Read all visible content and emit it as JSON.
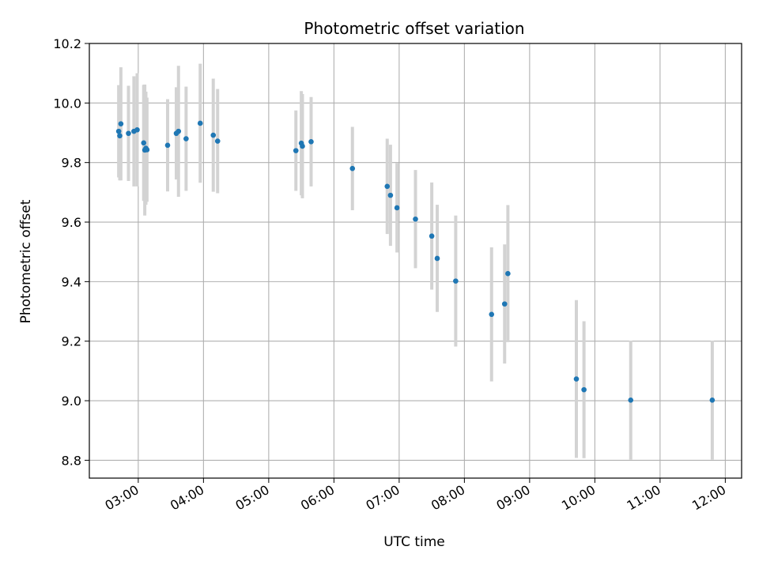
{
  "chart_data": {
    "type": "scatter",
    "title": "Photometric offset variation",
    "xlabel": "UTC time",
    "ylabel": "Photometric offset",
    "xlim": [
      "02:15",
      "12:15"
    ],
    "ylim": [
      8.74,
      10.2
    ],
    "grid": true,
    "x_ticks": [
      "03:00",
      "04:00",
      "05:00",
      "06:00",
      "07:00",
      "08:00",
      "09:00",
      "10:00",
      "11:00",
      "12:00"
    ],
    "y_ticks": [
      "8.8",
      "9.0",
      "9.2",
      "9.4",
      "9.6",
      "9.8",
      "10.0",
      "10.2"
    ],
    "colors": {
      "point": "#1f77b4",
      "errorbar": "#d3d3d3",
      "grid": "#b0b0b0"
    },
    "series": [
      {
        "points": [
          {
            "t": "02:42",
            "y": 9.905,
            "err": 0.155
          },
          {
            "t": "02:43",
            "y": 9.89,
            "err": 0.15
          },
          {
            "t": "02:44",
            "y": 9.93,
            "err": 0.19
          },
          {
            "t": "02:51",
            "y": 9.898,
            "err": 0.16
          },
          {
            "t": "02:56",
            "y": 9.905,
            "err": 0.185
          },
          {
            "t": "02:59",
            "y": 9.91,
            "err": 0.19
          },
          {
            "t": "03:05",
            "y": 9.866,
            "err": 0.195
          },
          {
            "t": "03:06",
            "y": 9.842,
            "err": 0.22
          },
          {
            "t": "03:07",
            "y": 9.848,
            "err": 0.19
          },
          {
            "t": "03:08",
            "y": 9.843,
            "err": 0.175
          },
          {
            "t": "03:27",
            "y": 9.858,
            "err": 0.155
          },
          {
            "t": "03:35",
            "y": 9.898,
            "err": 0.155
          },
          {
            "t": "03:37",
            "y": 9.905,
            "err": 0.22
          },
          {
            "t": "03:44",
            "y": 9.88,
            "err": 0.175
          },
          {
            "t": "03:57",
            "y": 9.932,
            "err": 0.2
          },
          {
            "t": "04:09",
            "y": 9.892,
            "err": 0.19
          },
          {
            "t": "04:13",
            "y": 9.872,
            "err": 0.175
          },
          {
            "t": "05:25",
            "y": 9.84,
            "err": 0.135
          },
          {
            "t": "05:30",
            "y": 9.865,
            "err": 0.175
          },
          {
            "t": "05:31",
            "y": 9.855,
            "err": 0.175
          },
          {
            "t": "05:39",
            "y": 9.87,
            "err": 0.15
          },
          {
            "t": "06:17",
            "y": 9.78,
            "err": 0.14
          },
          {
            "t": "06:49",
            "y": 9.72,
            "err": 0.16
          },
          {
            "t": "06:52",
            "y": 9.69,
            "err": 0.17
          },
          {
            "t": "06:58",
            "y": 9.648,
            "err": 0.15
          },
          {
            "t": "07:15",
            "y": 9.61,
            "err": 0.165
          },
          {
            "t": "07:30",
            "y": 9.553,
            "err": 0.18
          },
          {
            "t": "07:35",
            "y": 9.478,
            "err": 0.18
          },
          {
            "t": "07:52",
            "y": 9.402,
            "err": 0.22
          },
          {
            "t": "08:25",
            "y": 9.29,
            "err": 0.225
          },
          {
            "t": "08:37",
            "y": 9.325,
            "err": 0.2
          },
          {
            "t": "08:40",
            "y": 9.427,
            "err": 0.23
          },
          {
            "t": "09:43",
            "y": 9.073,
            "err": 0.265
          },
          {
            "t": "09:50",
            "y": 9.037,
            "err": 0.23
          },
          {
            "t": "10:33",
            "y": 9.002,
            "err": 0.2
          },
          {
            "t": "11:48",
            "y": 9.002,
            "err": 0.2
          }
        ]
      }
    ]
  }
}
